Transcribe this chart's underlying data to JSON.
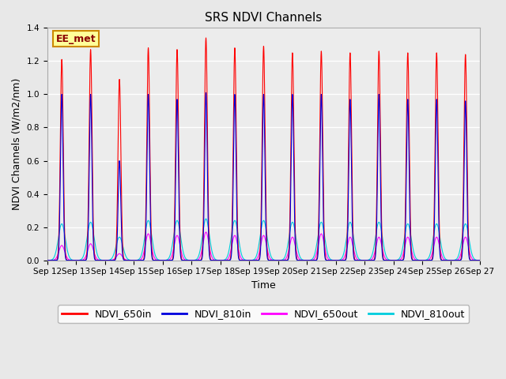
{
  "title": "SRS NDVI Channels",
  "ylabel": "NDVI Channels (W/m2/nm)",
  "xlabel": "Time",
  "annotation": "EE_met",
  "ylim": [
    0.0,
    1.4
  ],
  "yticks": [
    0.0,
    0.2,
    0.4,
    0.6,
    0.8,
    1.0,
    1.2,
    1.4
  ],
  "colors": {
    "NDVI_650in": "#ff0000",
    "NDVI_810in": "#0000dd",
    "NDVI_650out": "#ff00ff",
    "NDVI_810out": "#00ccdd"
  },
  "background_color": "#e8e8e8",
  "plot_bg_color": "#e8e8e8",
  "num_days": 15,
  "start_day": 12,
  "peak_650in": [
    1.21,
    1.27,
    1.09,
    1.28,
    1.27,
    1.34,
    1.28,
    1.29,
    1.25,
    1.26,
    1.25,
    1.26,
    1.25,
    1.25,
    1.24
  ],
  "peak_810in": [
    1.0,
    1.0,
    0.6,
    1.0,
    0.97,
    1.01,
    1.0,
    1.0,
    1.0,
    1.0,
    0.97,
    1.0,
    0.97,
    0.97,
    0.96
  ],
  "peak_650out": [
    0.09,
    0.1,
    0.04,
    0.16,
    0.15,
    0.17,
    0.15,
    0.15,
    0.14,
    0.16,
    0.14,
    0.14,
    0.14,
    0.14,
    0.14
  ],
  "peak_810out": [
    0.22,
    0.23,
    0.14,
    0.24,
    0.24,
    0.25,
    0.24,
    0.24,
    0.23,
    0.23,
    0.23,
    0.23,
    0.22,
    0.22,
    0.22
  ],
  "title_fontsize": 11,
  "label_fontsize": 9,
  "tick_fontsize": 7.5,
  "legend_fontsize": 9
}
